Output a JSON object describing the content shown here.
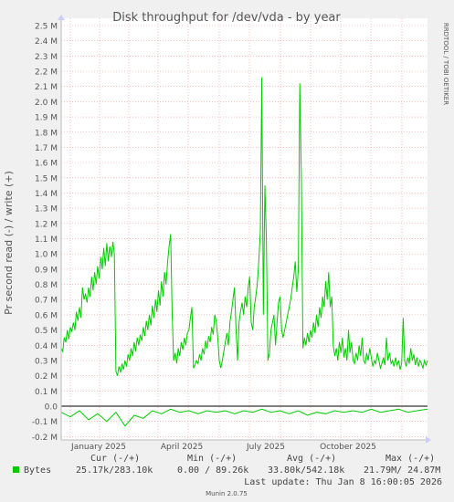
{
  "chart_data": {
    "type": "line",
    "title": "Disk throughput for /dev/vda - by year",
    "ylabel": "Pr second read (-) / write (+)",
    "side_label": "RRDTOOL / TOBI OETIKER",
    "ylim": [
      -0.2,
      2.5
    ],
    "y_ticks": [
      {
        "v": 2.5,
        "label": "2.5 M"
      },
      {
        "v": 2.4,
        "label": "2.4 M"
      },
      {
        "v": 2.3,
        "label": "2.3 M"
      },
      {
        "v": 2.2,
        "label": "2.2 M"
      },
      {
        "v": 2.1,
        "label": "2.1 M"
      },
      {
        "v": 2.0,
        "label": "2.0 M"
      },
      {
        "v": 1.9,
        "label": "1.9 M"
      },
      {
        "v": 1.8,
        "label": "1.8 M"
      },
      {
        "v": 1.7,
        "label": "1.7 M"
      },
      {
        "v": 1.6,
        "label": "1.6 M"
      },
      {
        "v": 1.5,
        "label": "1.5 M"
      },
      {
        "v": 1.4,
        "label": "1.4 M"
      },
      {
        "v": 1.3,
        "label": "1.3 M"
      },
      {
        "v": 1.2,
        "label": "1.2 M"
      },
      {
        "v": 1.1,
        "label": "1.1 M"
      },
      {
        "v": 1.0,
        "label": "1.0 M"
      },
      {
        "v": 0.9,
        "label": "0.9 M"
      },
      {
        "v": 0.8,
        "label": "0.8 M"
      },
      {
        "v": 0.7,
        "label": "0.7 M"
      },
      {
        "v": 0.6,
        "label": "0.6 M"
      },
      {
        "v": 0.5,
        "label": "0.5 M"
      },
      {
        "v": 0.4,
        "label": "0.4 M"
      },
      {
        "v": 0.3,
        "label": "0.3 M"
      },
      {
        "v": 0.2,
        "label": "0.2 M"
      },
      {
        "v": 0.1,
        "label": "0.1 M"
      },
      {
        "v": 0.0,
        "label": "0.0"
      },
      {
        "v": -0.1,
        "label": "-0.1 M"
      },
      {
        "v": -0.2,
        "label": "-0.2 M"
      }
    ],
    "x_labels": [
      "January 2025",
      "April 2025",
      "July 2025",
      "October 2025"
    ],
    "series": [
      {
        "name": "Bytes",
        "color": "#00cc00",
        "write_points": [
          [
            0,
            0.38
          ],
          [
            1,
            0.36
          ],
          [
            2,
            0.45
          ],
          [
            3,
            0.42
          ],
          [
            4,
            0.5
          ],
          [
            5,
            0.44
          ],
          [
            6,
            0.52
          ],
          [
            7,
            0.49
          ],
          [
            8,
            0.55
          ],
          [
            9,
            0.5
          ],
          [
            10,
            0.62
          ],
          [
            11,
            0.56
          ],
          [
            12,
            0.65
          ],
          [
            13,
            0.58
          ],
          [
            14,
            0.78
          ],
          [
            15,
            0.7
          ],
          [
            16,
            0.74
          ],
          [
            17,
            0.68
          ],
          [
            18,
            0.78
          ],
          [
            19,
            0.72
          ],
          [
            20,
            0.85
          ],
          [
            21,
            0.76
          ],
          [
            22,
            0.88
          ],
          [
            23,
            0.8
          ],
          [
            24,
            0.92
          ],
          [
            25,
            0.84
          ],
          [
            26,
            0.98
          ],
          [
            27,
            0.9
          ],
          [
            28,
            1.04
          ],
          [
            29,
            0.92
          ],
          [
            30,
            1.07
          ],
          [
            31,
            0.95
          ],
          [
            32,
            1.05
          ],
          [
            33,
            0.98
          ],
          [
            34,
            1.08
          ],
          [
            35,
            1.0
          ],
          [
            36,
            0.23
          ],
          [
            37,
            0.2
          ],
          [
            38,
            0.26
          ],
          [
            39,
            0.22
          ],
          [
            40,
            0.28
          ],
          [
            41,
            0.24
          ],
          [
            42,
            0.3
          ],
          [
            43,
            0.26
          ],
          [
            44,
            0.34
          ],
          [
            45,
            0.3
          ],
          [
            46,
            0.38
          ],
          [
            47,
            0.33
          ],
          [
            48,
            0.42
          ],
          [
            49,
            0.36
          ],
          [
            50,
            0.45
          ],
          [
            51,
            0.4
          ],
          [
            52,
            0.47
          ],
          [
            53,
            0.43
          ],
          [
            54,
            0.52
          ],
          [
            55,
            0.46
          ],
          [
            56,
            0.56
          ],
          [
            57,
            0.5
          ],
          [
            58,
            0.6
          ],
          [
            59,
            0.53
          ],
          [
            60,
            0.66
          ],
          [
            61,
            0.58
          ],
          [
            62,
            0.7
          ],
          [
            63,
            0.62
          ],
          [
            64,
            0.76
          ],
          [
            65,
            0.66
          ],
          [
            66,
            0.82
          ],
          [
            67,
            0.72
          ],
          [
            68,
            0.88
          ],
          [
            69,
            0.8
          ],
          [
            70,
            0.95
          ],
          [
            71,
            1.05
          ],
          [
            72,
            1.13
          ],
          [
            73,
            0.6
          ],
          [
            74,
            0.3
          ],
          [
            75,
            0.35
          ],
          [
            76,
            0.28
          ],
          [
            77,
            0.38
          ],
          [
            78,
            0.33
          ],
          [
            79,
            0.42
          ],
          [
            80,
            0.37
          ],
          [
            81,
            0.45
          ],
          [
            82,
            0.4
          ],
          [
            83,
            0.48
          ],
          [
            84,
            0.5
          ],
          [
            85,
            0.58
          ],
          [
            86,
            0.65
          ],
          [
            87,
            0.25
          ],
          [
            88,
            0.27
          ],
          [
            89,
            0.3
          ],
          [
            90,
            0.28
          ],
          [
            91,
            0.34
          ],
          [
            92,
            0.3
          ],
          [
            93,
            0.38
          ],
          [
            94,
            0.34
          ],
          [
            95,
            0.43
          ],
          [
            96,
            0.38
          ],
          [
            97,
            0.46
          ],
          [
            98,
            0.42
          ],
          [
            99,
            0.52
          ],
          [
            100,
            0.47
          ],
          [
            101,
            0.6
          ],
          [
            102,
            0.56
          ],
          [
            103,
            0.45
          ],
          [
            104,
            0.3
          ],
          [
            105,
            0.25
          ],
          [
            106,
            0.3
          ],
          [
            107,
            0.36
          ],
          [
            108,
            0.42
          ],
          [
            109,
            0.48
          ],
          [
            110,
            0.4
          ],
          [
            111,
            0.55
          ],
          [
            112,
            0.62
          ],
          [
            113,
            0.7
          ],
          [
            114,
            0.78
          ],
          [
            115,
            0.52
          ],
          [
            116,
            0.3
          ],
          [
            117,
            0.55
          ],
          [
            118,
            0.62
          ],
          [
            119,
            0.68
          ],
          [
            120,
            0.6
          ],
          [
            121,
            0.72
          ],
          [
            122,
            0.65
          ],
          [
            123,
            0.78
          ],
          [
            124,
            0.85
          ],
          [
            125,
            0.55
          ],
          [
            126,
            0.5
          ],
          [
            127,
            0.65
          ],
          [
            128,
            0.72
          ],
          [
            129,
            0.8
          ],
          [
            130,
            0.95
          ],
          [
            131,
            1.15
          ],
          [
            132,
            2.16
          ],
          [
            133,
            0.6
          ],
          [
            134,
            1.45
          ],
          [
            135,
            1.1
          ],
          [
            136,
            0.3
          ],
          [
            137,
            0.35
          ],
          [
            138,
            0.5
          ],
          [
            139,
            0.55
          ],
          [
            140,
            0.6
          ],
          [
            141,
            0.4
          ],
          [
            142,
            0.55
          ],
          [
            143,
            0.68
          ],
          [
            144,
            0.72
          ],
          [
            145,
            0.5
          ],
          [
            146,
            0.45
          ],
          [
            147,
            0.5
          ],
          [
            148,
            0.55
          ],
          [
            149,
            0.6
          ],
          [
            150,
            0.65
          ],
          [
            151,
            0.7
          ],
          [
            152,
            0.78
          ],
          [
            153,
            0.85
          ],
          [
            154,
            0.95
          ],
          [
            155,
            0.75
          ],
          [
            156,
            0.9
          ],
          [
            157,
            2.12
          ],
          [
            158,
            1.5
          ],
          [
            159,
            0.38
          ],
          [
            160,
            0.45
          ],
          [
            161,
            0.4
          ],
          [
            162,
            0.48
          ],
          [
            163,
            0.42
          ],
          [
            164,
            0.5
          ],
          [
            165,
            0.45
          ],
          [
            166,
            0.55
          ],
          [
            167,
            0.48
          ],
          [
            168,
            0.6
          ],
          [
            169,
            0.52
          ],
          [
            170,
            0.65
          ],
          [
            171,
            0.58
          ],
          [
            172,
            0.72
          ],
          [
            173,
            0.65
          ],
          [
            174,
            0.82
          ],
          [
            175,
            0.7
          ],
          [
            176,
            0.88
          ],
          [
            177,
            0.65
          ],
          [
            178,
            0.72
          ],
          [
            179,
            0.4
          ],
          [
            180,
            0.33
          ],
          [
            181,
            0.38
          ],
          [
            182,
            0.3
          ],
          [
            183,
            0.42
          ],
          [
            184,
            0.35
          ],
          [
            185,
            0.45
          ],
          [
            186,
            0.32
          ],
          [
            187,
            0.38
          ],
          [
            188,
            0.3
          ],
          [
            189,
            0.5
          ],
          [
            190,
            0.35
          ],
          [
            191,
            0.42
          ],
          [
            192,
            0.3
          ],
          [
            193,
            0.28
          ],
          [
            194,
            0.35
          ],
          [
            195,
            0.3
          ],
          [
            196,
            0.4
          ],
          [
            197,
            0.33
          ],
          [
            198,
            0.45
          ],
          [
            199,
            0.3
          ],
          [
            200,
            0.28
          ],
          [
            201,
            0.35
          ],
          [
            202,
            0.3
          ],
          [
            203,
            0.38
          ],
          [
            204,
            0.32
          ],
          [
            205,
            0.26
          ],
          [
            206,
            0.3
          ],
          [
            207,
            0.28
          ],
          [
            208,
            0.35
          ],
          [
            209,
            0.3
          ],
          [
            210,
            0.25
          ],
          [
            211,
            0.28
          ],
          [
            212,
            0.32
          ],
          [
            213,
            0.27
          ],
          [
            214,
            0.45
          ],
          [
            215,
            0.3
          ],
          [
            216,
            0.35
          ],
          [
            217,
            0.28
          ],
          [
            218,
            0.3
          ],
          [
            219,
            0.26
          ],
          [
            220,
            0.32
          ],
          [
            221,
            0.27
          ],
          [
            222,
            0.3
          ],
          [
            223,
            0.24
          ],
          [
            224,
            0.28
          ],
          [
            225,
            0.58
          ],
          [
            226,
            0.3
          ],
          [
            227,
            0.26
          ],
          [
            228,
            0.32
          ],
          [
            229,
            0.28
          ],
          [
            230,
            0.38
          ],
          [
            231,
            0.3
          ],
          [
            232,
            0.34
          ],
          [
            233,
            0.27
          ],
          [
            234,
            0.32
          ],
          [
            235,
            0.26
          ],
          [
            236,
            0.3
          ],
          [
            237,
            0.28
          ],
          [
            238,
            0.25
          ],
          [
            239,
            0.3
          ],
          [
            240,
            0.27
          ],
          [
            241,
            0.3
          ]
        ],
        "read_points": [
          [
            0,
            -0.04
          ],
          [
            6,
            -0.07
          ],
          [
            12,
            -0.03
          ],
          [
            18,
            -0.09
          ],
          [
            24,
            -0.05
          ],
          [
            30,
            -0.1
          ],
          [
            36,
            -0.04
          ],
          [
            42,
            -0.13
          ],
          [
            48,
            -0.06
          ],
          [
            54,
            -0.08
          ],
          [
            60,
            -0.03
          ],
          [
            66,
            -0.05
          ],
          [
            72,
            -0.02
          ],
          [
            78,
            -0.04
          ],
          [
            84,
            -0.03
          ],
          [
            90,
            -0.05
          ],
          [
            96,
            -0.03
          ],
          [
            102,
            -0.04
          ],
          [
            108,
            -0.03
          ],
          [
            114,
            -0.05
          ],
          [
            120,
            -0.03
          ],
          [
            126,
            -0.04
          ],
          [
            132,
            -0.02
          ],
          [
            138,
            -0.04
          ],
          [
            144,
            -0.03
          ],
          [
            150,
            -0.05
          ],
          [
            156,
            -0.03
          ],
          [
            162,
            -0.06
          ],
          [
            168,
            -0.04
          ],
          [
            174,
            -0.05
          ],
          [
            180,
            -0.03
          ],
          [
            186,
            -0.04
          ],
          [
            192,
            -0.03
          ],
          [
            198,
            -0.04
          ],
          [
            204,
            -0.02
          ],
          [
            210,
            -0.04
          ],
          [
            216,
            -0.03
          ],
          [
            222,
            -0.02
          ],
          [
            228,
            -0.04
          ],
          [
            234,
            -0.03
          ],
          [
            241,
            -0.02
          ]
        ]
      }
    ],
    "legend": {
      "headers": {
        "cur": "Cur (-/+)",
        "min": "Min (-/+)",
        "avg": "Avg (-/+)",
        "max": "Max (-/+)"
      },
      "row": {
        "name": "Bytes",
        "cur": "25.17k/283.10k",
        "min": "0.00 / 89.26k",
        "avg": "33.80k/542.18k",
        "max": "21.79M/ 24.87M"
      }
    },
    "last_update": "Last update: Thu Jan  8 16:00:05 2026",
    "footer": "Munin 2.0.75"
  }
}
